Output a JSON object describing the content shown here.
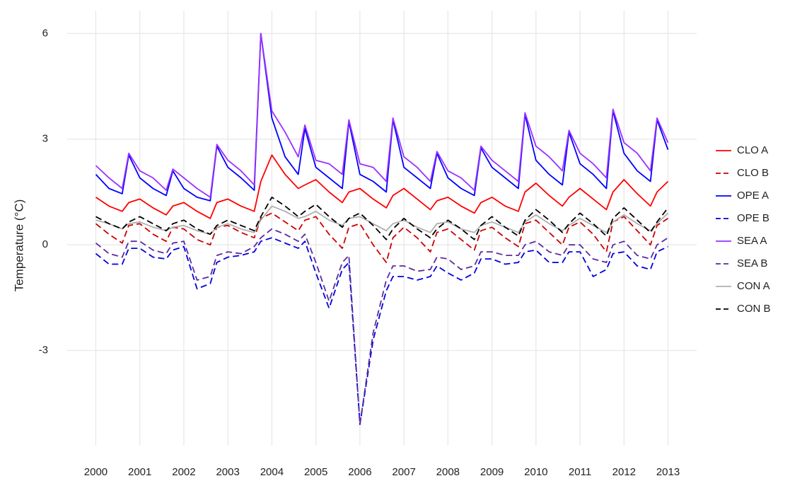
{
  "chart_data": {
    "type": "line",
    "y_label": "Temperature (°C)",
    "x": [
      2000,
      2000.3,
      2000.6,
      2000.75,
      2001,
      2001.3,
      2001.6,
      2001.75,
      2002,
      2002.3,
      2002.6,
      2002.75,
      2003,
      2003.3,
      2003.6,
      2003.75,
      2004,
      2004.3,
      2004.6,
      2004.75,
      2005,
      2005.3,
      2005.6,
      2005.75,
      2006,
      2006.3,
      2006.6,
      2006.75,
      2007,
      2007.3,
      2007.6,
      2007.75,
      2008,
      2008.3,
      2008.6,
      2008.75,
      2009,
      2009.3,
      2009.6,
      2009.75,
      2010,
      2010.3,
      2010.6,
      2010.75,
      2011,
      2011.3,
      2011.6,
      2011.75,
      2012,
      2012.3,
      2012.6,
      2012.75,
      2013
    ],
    "xlim": [
      1999.35,
      2013.65
    ],
    "xticks": [
      2000,
      2001,
      2002,
      2003,
      2004,
      2005,
      2006,
      2007,
      2008,
      2009,
      2010,
      2011,
      2012,
      2013
    ],
    "ylim": [
      -5.7,
      6.65
    ],
    "yticks": [
      -3,
      0,
      3,
      6
    ],
    "grid": true,
    "legend": "right",
    "series": [
      {
        "name": "CLO A",
        "color": "#ff0000",
        "linestyle": "solid",
        "values": [
          1.35,
          1.1,
          0.95,
          1.2,
          1.3,
          1.05,
          0.85,
          1.1,
          1.2,
          0.95,
          0.75,
          1.2,
          1.3,
          1.1,
          0.95,
          1.8,
          2.55,
          2.0,
          1.6,
          1.7,
          1.85,
          1.5,
          1.2,
          1.5,
          1.6,
          1.3,
          1.05,
          1.4,
          1.6,
          1.3,
          1.0,
          1.25,
          1.35,
          1.1,
          0.9,
          1.2,
          1.35,
          1.1,
          0.95,
          1.5,
          1.75,
          1.4,
          1.1,
          1.35,
          1.6,
          1.3,
          1.0,
          1.5,
          1.85,
          1.45,
          1.1,
          1.5,
          1.8
        ]
      },
      {
        "name": "CLO B",
        "color": "#cc0000",
        "linestyle": "dashed",
        "values": [
          0.6,
          0.3,
          0.05,
          0.55,
          0.6,
          0.3,
          0.1,
          0.5,
          0.45,
          0.15,
          0.0,
          0.5,
          0.55,
          0.35,
          0.2,
          0.75,
          0.9,
          0.65,
          0.4,
          0.7,
          0.8,
          0.3,
          -0.1,
          0.5,
          0.6,
          0.0,
          -0.5,
          0.2,
          0.5,
          0.2,
          -0.2,
          0.35,
          0.45,
          0.15,
          -0.15,
          0.4,
          0.5,
          0.2,
          -0.05,
          0.6,
          0.7,
          0.35,
          0.0,
          0.5,
          0.65,
          0.3,
          -0.2,
          0.65,
          0.8,
          0.4,
          0.0,
          0.55,
          0.75
        ]
      },
      {
        "name": "OPE A",
        "color": "#0000ff",
        "linestyle": "solid",
        "values": [
          2.0,
          1.6,
          1.45,
          2.55,
          1.9,
          1.6,
          1.4,
          2.1,
          1.6,
          1.35,
          1.25,
          2.8,
          2.2,
          1.9,
          1.55,
          6.0,
          3.6,
          2.5,
          2.0,
          3.3,
          2.2,
          1.9,
          1.6,
          3.5,
          2.0,
          1.8,
          1.5,
          3.55,
          2.2,
          1.9,
          1.6,
          2.6,
          1.9,
          1.6,
          1.4,
          2.75,
          2.2,
          1.9,
          1.6,
          3.7,
          2.4,
          2.0,
          1.7,
          3.2,
          2.3,
          2.0,
          1.6,
          3.8,
          2.6,
          2.1,
          1.8,
          3.55,
          2.7
        ]
      },
      {
        "name": "OPE B",
        "color": "#0000dd",
        "linestyle": "dashed",
        "values": [
          -0.25,
          -0.55,
          -0.55,
          -0.1,
          -0.1,
          -0.35,
          -0.4,
          -0.15,
          -0.05,
          -1.25,
          -1.1,
          -0.5,
          -0.35,
          -0.3,
          -0.2,
          0.1,
          0.2,
          0.05,
          -0.1,
          0.1,
          -0.8,
          -1.8,
          -0.7,
          -0.5,
          -5.1,
          -2.7,
          -1.3,
          -0.9,
          -0.9,
          -1.0,
          -0.9,
          -0.6,
          -0.8,
          -1.0,
          -0.8,
          -0.4,
          -0.4,
          -0.55,
          -0.5,
          -0.2,
          -0.15,
          -0.5,
          -0.5,
          -0.2,
          -0.2,
          -0.9,
          -0.7,
          -0.25,
          -0.2,
          -0.6,
          -0.7,
          -0.2,
          -0.05
        ]
      },
      {
        "name": "SEA A",
        "color": "#9b30ff",
        "linestyle": "solid",
        "values": [
          2.25,
          1.9,
          1.6,
          2.6,
          2.1,
          1.9,
          1.55,
          2.15,
          1.9,
          1.6,
          1.35,
          2.85,
          2.4,
          2.1,
          1.7,
          6.0,
          3.8,
          3.2,
          2.5,
          3.4,
          2.4,
          2.3,
          2.0,
          3.55,
          2.3,
          2.2,
          1.8,
          3.6,
          2.5,
          2.2,
          1.8,
          2.65,
          2.1,
          1.9,
          1.55,
          2.8,
          2.4,
          2.1,
          1.8,
          3.75,
          2.8,
          2.5,
          2.1,
          3.25,
          2.6,
          2.3,
          1.9,
          3.85,
          2.9,
          2.6,
          2.1,
          3.6,
          2.9
        ]
      },
      {
        "name": "SEA B",
        "color": "#5b2c9f",
        "linestyle": "dashed",
        "values": [
          0.05,
          -0.25,
          -0.35,
          0.1,
          0.1,
          -0.15,
          -0.25,
          0.05,
          0.1,
          -1.0,
          -0.9,
          -0.3,
          -0.2,
          -0.25,
          -0.05,
          0.2,
          0.45,
          0.3,
          0.1,
          0.3,
          -0.5,
          -1.6,
          -0.5,
          -0.3,
          -5.1,
          -2.5,
          -1.0,
          -0.6,
          -0.6,
          -0.75,
          -0.7,
          -0.35,
          -0.4,
          -0.7,
          -0.6,
          -0.2,
          -0.2,
          -0.3,
          -0.3,
          0.0,
          0.1,
          -0.2,
          -0.3,
          0.0,
          0.0,
          -0.4,
          -0.5,
          0.0,
          0.1,
          -0.3,
          -0.4,
          0.0,
          0.2
        ]
      },
      {
        "name": "CON A",
        "color": "#b0b0b0",
        "linestyle": "solid",
        "values": [
          0.7,
          0.6,
          0.45,
          0.6,
          0.65,
          0.5,
          0.4,
          0.5,
          0.55,
          0.4,
          0.3,
          0.5,
          0.6,
          0.45,
          0.35,
          0.7,
          1.1,
          0.95,
          0.75,
          0.8,
          0.95,
          0.7,
          0.55,
          0.75,
          0.8,
          0.6,
          0.4,
          0.6,
          0.7,
          0.5,
          0.35,
          0.6,
          0.65,
          0.45,
          0.35,
          0.55,
          0.65,
          0.5,
          0.35,
          0.65,
          0.85,
          0.6,
          0.4,
          0.55,
          0.75,
          0.55,
          0.35,
          0.65,
          0.85,
          0.6,
          0.4,
          0.6,
          0.9
        ]
      },
      {
        "name": "CON B",
        "color": "#000000",
        "linestyle": "dashed",
        "values": [
          0.8,
          0.6,
          0.45,
          0.65,
          0.8,
          0.6,
          0.4,
          0.6,
          0.7,
          0.45,
          0.3,
          0.55,
          0.7,
          0.55,
          0.4,
          0.8,
          1.35,
          1.1,
          0.8,
          0.95,
          1.15,
          0.8,
          0.5,
          0.75,
          0.9,
          0.55,
          0.15,
          0.45,
          0.75,
          0.45,
          0.2,
          0.45,
          0.7,
          0.45,
          0.15,
          0.55,
          0.8,
          0.5,
          0.25,
          0.7,
          1.0,
          0.7,
          0.35,
          0.6,
          0.9,
          0.6,
          0.25,
          0.75,
          1.05,
          0.7,
          0.35,
          0.65,
          1.05
        ]
      }
    ]
  }
}
